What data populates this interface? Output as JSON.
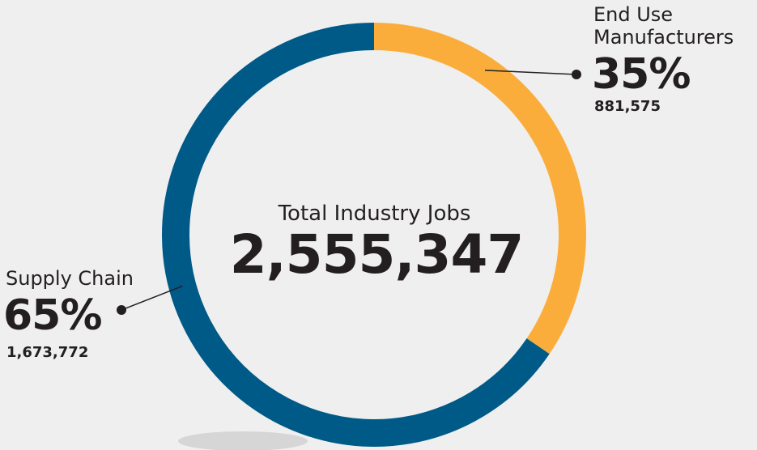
{
  "chart_data": {
    "type": "pie",
    "center": {
      "title": "Total Industry Jobs",
      "value": "2,555,347"
    },
    "slices": [
      {
        "name_lines": [
          "End Use",
          "Manufacturers"
        ],
        "percent_label": "35%",
        "percent": 35,
        "value_label": "881,575",
        "value": 881575,
        "color": "#fbad3b"
      },
      {
        "name_lines": [
          "Supply Chain"
        ],
        "percent_label": "65%",
        "percent": 65,
        "value_label": "1,673,772",
        "value": 1673772,
        "color": "#005a87"
      }
    ]
  },
  "colors": {
    "background": "#efefef",
    "text": "#231f20",
    "leader": "#231f20"
  }
}
